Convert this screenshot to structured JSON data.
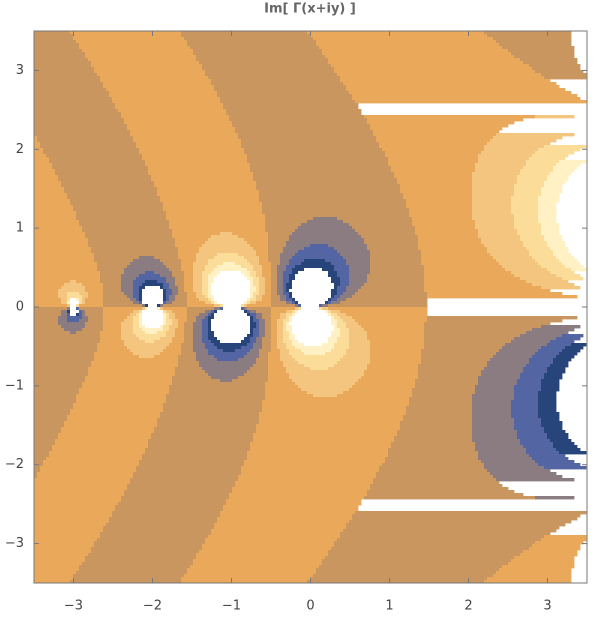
{
  "chart_data": {
    "type": "contour",
    "title": "Im[ Γ(x+iy) ]",
    "xlim": [
      -3.5,
      3.5
    ],
    "ylim": [
      -3.5,
      3.5
    ],
    "xticks": [
      {
        "value": -3,
        "label": "−3"
      },
      {
        "value": -2,
        "label": "−2"
      },
      {
        "value": -1,
        "label": "−1"
      },
      0,
      1,
      2,
      3
    ],
    "yticks": [
      {
        "value": -3,
        "label": "−3"
      },
      {
        "value": -2,
        "label": "−2"
      },
      {
        "value": -1,
        "label": "−1"
      },
      0,
      1,
      2,
      3
    ],
    "levels": [
      -1.6,
      -1.2,
      -0.8,
      -0.4,
      0,
      0.4,
      0.8,
      1.2,
      1.6
    ],
    "colors": [
      "#ffffff",
      "#27457a",
      "#5366a3",
      "#8a7c80",
      "#c99660",
      "#eaa95a",
      "#f4c57e",
      "#fbdc98",
      "#fff1c4",
      "#ffffff"
    ]
  }
}
